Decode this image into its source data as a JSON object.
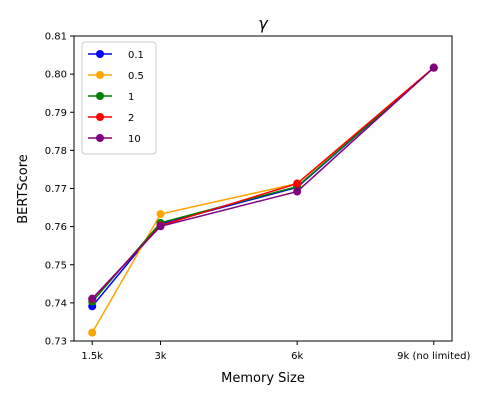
{
  "chart_data": {
    "type": "line",
    "title": "γ",
    "xlabel": "Memory Size",
    "ylabel": "BERTScore",
    "categories": [
      "1.5k",
      "3k",
      "6k",
      "9k (no limited)"
    ],
    "x": [
      1.5,
      3,
      6,
      9
    ],
    "ylim": [
      0.73,
      0.81
    ],
    "yticks": [
      0.73,
      0.74,
      0.75,
      0.76,
      0.77,
      0.78,
      0.79,
      0.8,
      0.81
    ],
    "grid": false,
    "legend_position": "top-left",
    "series": [
      {
        "name": "0.1",
        "color": "#0000ff",
        "values": [
          0.7391,
          0.7607,
          0.7703,
          0.8017
        ]
      },
      {
        "name": "0.5",
        "color": "#ffa500",
        "values": [
          0.7322,
          0.7633,
          0.7713,
          0.8017
        ]
      },
      {
        "name": "1",
        "color": "#008000",
        "values": [
          0.7403,
          0.761,
          0.7705,
          0.8017
        ]
      },
      {
        "name": "2",
        "color": "#ff0000",
        "values": [
          0.741,
          0.7603,
          0.7713,
          0.8017
        ]
      },
      {
        "name": "10",
        "color": "#800080",
        "values": [
          0.7411,
          0.7601,
          0.7692,
          0.8017
        ]
      }
    ]
  }
}
